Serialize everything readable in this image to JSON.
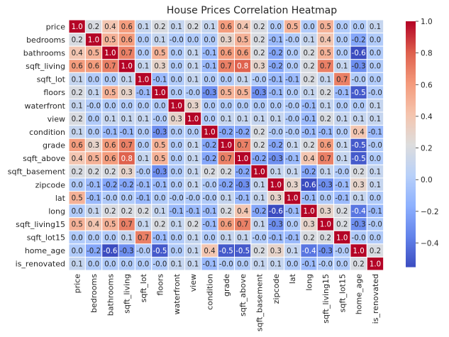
{
  "chart_data": {
    "type": "heatmap",
    "title": "House Prices Correlation Heatmap",
    "xlabel": "",
    "ylabel": "",
    "colormap": "coolwarm",
    "value_range": [
      -0.55,
      1.0
    ],
    "colorbar_ticks": [
      1.0,
      0.8,
      0.6,
      0.4,
      0.2,
      0.0,
      -0.2,
      -0.4
    ],
    "colorbar_tick_labels": [
      "1.0",
      "0.8",
      "0.6",
      "0.4",
      "0.2",
      "0.0",
      "−0.2",
      "−0.4"
    ],
    "labels": [
      "price",
      "bedrooms",
      "bathrooms",
      "sqft_living",
      "sqft_lot",
      "floors",
      "waterfront",
      "view",
      "condition",
      "grade",
      "sqft_above",
      "sqft_basement",
      "zipcode",
      "lat",
      "long",
      "sqft_living15",
      "sqft_lot15",
      "home_age",
      "is_renovated"
    ],
    "values": [
      [
        1.0,
        0.2,
        0.4,
        0.6,
        0.1,
        0.2,
        0.1,
        0.2,
        0.1,
        0.6,
        0.4,
        0.2,
        0.0,
        0.5,
        0.0,
        0.5,
        0.0,
        0.0,
        0.1
      ],
      [
        0.2,
        1.0,
        0.5,
        0.6,
        0.0,
        0.1,
        -0.0,
        0.0,
        0.0,
        0.3,
        0.5,
        0.2,
        -0.1,
        -0.0,
        0.1,
        0.4,
        0.0,
        -0.2,
        0.0
      ],
      [
        0.4,
        0.5,
        1.0,
        0.7,
        0.0,
        0.5,
        0.0,
        0.1,
        -0.1,
        0.6,
        0.6,
        0.2,
        -0.2,
        0.0,
        0.2,
        0.5,
        0.0,
        -0.6,
        0.0
      ],
      [
        0.6,
        0.6,
        0.7,
        1.0,
        0.1,
        0.3,
        0.0,
        0.1,
        -0.1,
        0.7,
        0.8,
        0.3,
        -0.2,
        0.0,
        0.2,
        0.7,
        0.1,
        -0.3,
        0.0
      ],
      [
        0.1,
        0.0,
        0.0,
        0.1,
        1.0,
        -0.1,
        0.0,
        0.1,
        0.0,
        0.0,
        0.1,
        -0.0,
        -0.1,
        -0.1,
        0.2,
        0.1,
        0.7,
        -0.0,
        0.0
      ],
      [
        0.2,
        0.1,
        0.5,
        0.3,
        -0.1,
        1.0,
        0.0,
        -0.0,
        -0.3,
        0.5,
        0.5,
        -0.3,
        -0.1,
        0.0,
        0.1,
        0.2,
        -0.1,
        -0.5,
        -0.0
      ],
      [
        0.1,
        -0.0,
        0.0,
        0.0,
        0.0,
        0.0,
        1.0,
        0.3,
        0.0,
        0.0,
        0.0,
        0.0,
        0.0,
        -0.0,
        -0.1,
        0.1,
        0.0,
        0.0,
        0.1
      ],
      [
        0.2,
        0.0,
        0.1,
        0.1,
        0.1,
        -0.0,
        0.3,
        1.0,
        0.0,
        0.1,
        0.1,
        0.1,
        0.1,
        -0.0,
        -0.1,
        0.2,
        0.1,
        0.1,
        0.1
      ],
      [
        0.1,
        0.0,
        -0.1,
        -0.1,
        0.0,
        -0.3,
        0.0,
        0.0,
        1.0,
        -0.2,
        -0.2,
        0.2,
        -0.0,
        -0.0,
        -0.1,
        -0.1,
        0.0,
        0.4,
        -0.1
      ],
      [
        0.6,
        0.3,
        0.6,
        0.7,
        0.0,
        0.5,
        0.0,
        0.1,
        -0.2,
        1.0,
        0.7,
        0.2,
        -0.2,
        0.1,
        0.2,
        0.6,
        0.1,
        -0.5,
        -0.0
      ],
      [
        0.4,
        0.5,
        0.6,
        0.8,
        0.1,
        0.5,
        0.0,
        0.1,
        -0.2,
        0.7,
        1.0,
        -0.2,
        -0.3,
        -0.1,
        0.4,
        0.7,
        0.1,
        -0.5,
        0.0
      ],
      [
        0.2,
        0.2,
        0.2,
        0.3,
        -0.0,
        -0.3,
        0.0,
        0.1,
        0.2,
        0.2,
        -0.2,
        1.0,
        0.1,
        0.1,
        -0.2,
        0.1,
        -0.0,
        0.2,
        0.1
      ],
      [
        0.0,
        -0.1,
        -0.2,
        -0.2,
        -0.1,
        -0.1,
        0.0,
        0.1,
        -0.0,
        -0.2,
        -0.3,
        0.1,
        1.0,
        0.3,
        -0.6,
        -0.3,
        -0.1,
        0.3,
        0.1
      ],
      [
        0.5,
        -0.1,
        -0.0,
        0.0,
        -0.1,
        0.0,
        -0.0,
        -0.0,
        -0.0,
        0.1,
        -0.1,
        0.1,
        0.3,
        1.0,
        -0.1,
        0.0,
        -0.1,
        0.1,
        0.0
      ],
      [
        0.0,
        0.1,
        0.2,
        0.2,
        0.2,
        0.1,
        -0.1,
        -0.1,
        -0.1,
        0.2,
        0.4,
        -0.2,
        -0.6,
        -0.1,
        1.0,
        0.3,
        0.2,
        -0.4,
        -0.1
      ],
      [
        0.5,
        0.4,
        0.5,
        0.7,
        0.1,
        0.2,
        0.1,
        0.2,
        -0.1,
        0.6,
        0.7,
        0.1,
        -0.3,
        0.0,
        0.3,
        1.0,
        0.2,
        -0.3,
        -0.0
      ],
      [
        0.0,
        0.0,
        0.0,
        0.1,
        0.7,
        -0.1,
        0.0,
        0.1,
        0.0,
        0.1,
        0.1,
        -0.0,
        -0.1,
        -0.1,
        0.2,
        0.2,
        1.0,
        -0.0,
        0.0
      ],
      [
        0.0,
        -0.2,
        -0.6,
        -0.3,
        -0.0,
        -0.5,
        0.0,
        0.1,
        0.4,
        -0.5,
        -0.5,
        0.2,
        0.3,
        0.1,
        -0.4,
        -0.3,
        -0.0,
        1.0,
        0.2
      ],
      [
        0.1,
        0.0,
        0.0,
        0.0,
        0.0,
        -0.0,
        0.1,
        0.1,
        -0.1,
        -0.0,
        0.0,
        0.1,
        0.1,
        0.0,
        -0.1,
        -0.0,
        0.0,
        0.2,
        1.0
      ]
    ],
    "grid": false,
    "legend": "colorbar-right"
  }
}
